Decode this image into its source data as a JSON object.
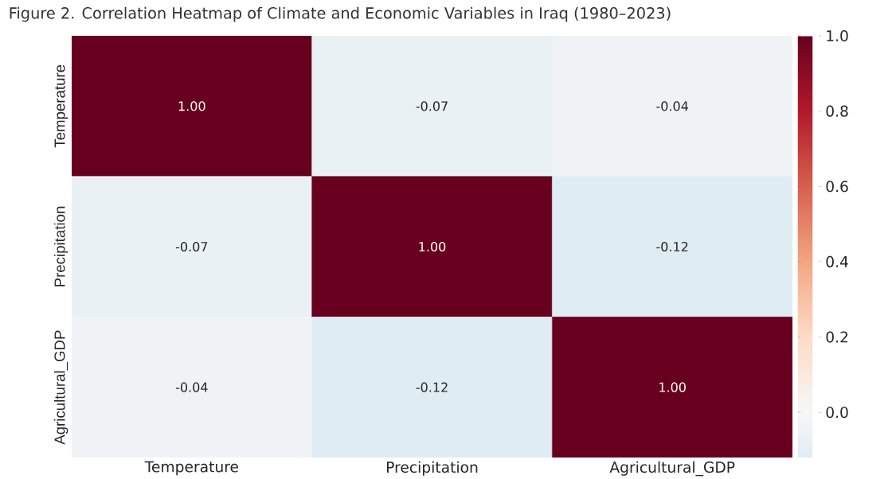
{
  "chart_data": {
    "type": "heatmap",
    "title": "Figure 2. Correlation Heatmap of Climate and Economic Variables in Iraq (1980–2023)",
    "categories": [
      "Temperature",
      "Precipitation",
      "Agricultural_GDP"
    ],
    "y_categories": [
      "Temperature",
      "Precipitation",
      "Agricultural_GDP"
    ],
    "cells": [
      [
        1.0,
        -0.07,
        -0.04
      ],
      [
        -0.07,
        1.0,
        -0.12
      ],
      [
        -0.04,
        -0.12,
        1.0
      ]
    ],
    "cell_labels": [
      [
        "1.00",
        "-0.07",
        "-0.04"
      ],
      [
        "-0.07",
        "1.00",
        "-0.12"
      ],
      [
        "-0.04",
        "-0.12",
        "1.00"
      ]
    ],
    "clim": [
      -0.12,
      1.0
    ],
    "cticks": [
      {
        "value": 0,
        "label": "0.0"
      },
      {
        "value": 0.2,
        "label": "0.2"
      },
      {
        "value": 0.4,
        "label": "0.4"
      },
      {
        "value": 0.6,
        "label": "0.6"
      },
      {
        "value": 0.8,
        "label": "0.8"
      },
      {
        "value": 1.0,
        "label": "1.0"
      }
    ]
  }
}
